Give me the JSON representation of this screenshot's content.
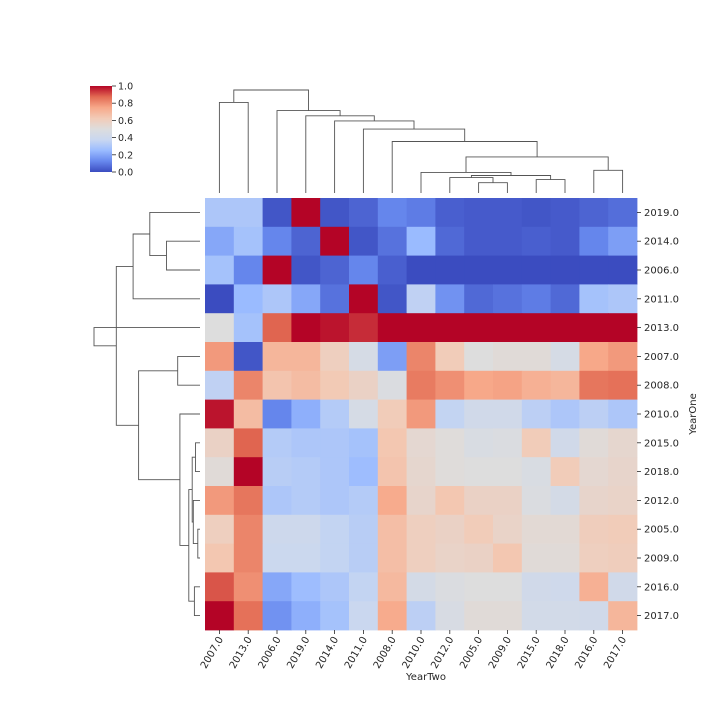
{
  "chart_data": {
    "type": "heatmap",
    "title": "",
    "xlabel": "YearTwo",
    "ylabel": "YearOne",
    "colormap": "coolwarm",
    "colormap_stops": [
      "#3b4cc0",
      "#6788ee",
      "#9abbff",
      "#c9d7f0",
      "#dddddd",
      "#f2cbb7",
      "#f7a889",
      "#e26952",
      "#b40426"
    ],
    "clim": [
      0,
      1
    ],
    "colorbar_ticks": [
      "0.0",
      "0.2",
      "0.4",
      "0.6",
      "0.8",
      "1.0"
    ],
    "colorbar_values": [
      0.0,
      0.2,
      0.4,
      0.6,
      0.8,
      1.0
    ],
    "columns": [
      "2007.0",
      "2013.0",
      "2006.0",
      "2019.0",
      "2014.0",
      "2011.0",
      "2008.0",
      "2010.0",
      "2012.0",
      "2005.0",
      "2009.0",
      "2015.0",
      "2018.0",
      "2016.0",
      "2017.0"
    ],
    "rows": [
      "2019.0",
      "2014.0",
      "2006.0",
      "2011.0",
      "2013.0",
      "2007.0",
      "2008.0",
      "2010.0",
      "2015.0",
      "2018.0",
      "2012.0",
      "2005.0",
      "2009.0",
      "2016.0",
      "2017.0"
    ],
    "values": [
      [
        0.3,
        0.3,
        0.02,
        1.0,
        0.02,
        0.05,
        0.12,
        0.1,
        0.04,
        0.03,
        0.03,
        0.02,
        0.03,
        0.05,
        0.07
      ],
      [
        0.2,
        0.28,
        0.12,
        0.05,
        1.0,
        0.02,
        0.08,
        0.25,
        0.06,
        0.03,
        0.03,
        0.04,
        0.03,
        0.12,
        0.18
      ],
      [
        0.28,
        0.12,
        1.0,
        0.02,
        0.05,
        0.12,
        0.04,
        0.0,
        0.0,
        0.0,
        0.0,
        0.0,
        0.0,
        0.0,
        0.0
      ],
      [
        0.0,
        0.25,
        0.3,
        0.2,
        0.08,
        1.0,
        0.02,
        0.35,
        0.15,
        0.06,
        0.08,
        0.1,
        0.06,
        0.28,
        0.3
      ],
      [
        0.5,
        0.28,
        0.88,
        1.0,
        0.98,
        0.95,
        1.0,
        1.0,
        1.0,
        1.0,
        1.0,
        1.0,
        1.0,
        1.0,
        1.0
      ],
      [
        0.78,
        0.02,
        0.7,
        0.7,
        0.6,
        0.45,
        0.18,
        0.82,
        0.62,
        0.5,
        0.52,
        0.52,
        0.45,
        0.75,
        0.78
      ],
      [
        0.35,
        0.82,
        0.65,
        0.68,
        0.63,
        0.58,
        0.48,
        0.84,
        0.8,
        0.75,
        0.76,
        0.72,
        0.7,
        0.85,
        0.86
      ],
      [
        0.98,
        0.68,
        0.12,
        0.22,
        0.32,
        0.45,
        0.62,
        0.78,
        0.36,
        0.42,
        0.42,
        0.34,
        0.3,
        0.34,
        0.3
      ],
      [
        0.58,
        0.88,
        0.32,
        0.3,
        0.3,
        0.28,
        0.64,
        0.54,
        0.51,
        0.47,
        0.48,
        0.62,
        0.42,
        0.52,
        0.55
      ],
      [
        0.52,
        1.0,
        0.33,
        0.32,
        0.3,
        0.26,
        0.65,
        0.55,
        0.51,
        0.5,
        0.5,
        0.47,
        0.62,
        0.54,
        0.56
      ],
      [
        0.78,
        0.85,
        0.3,
        0.32,
        0.3,
        0.32,
        0.74,
        0.56,
        0.64,
        0.58,
        0.58,
        0.48,
        0.44,
        0.56,
        0.57
      ],
      [
        0.6,
        0.82,
        0.4,
        0.4,
        0.36,
        0.33,
        0.67,
        0.6,
        0.58,
        0.62,
        0.57,
        0.53,
        0.53,
        0.61,
        0.62
      ],
      [
        0.64,
        0.82,
        0.39,
        0.39,
        0.36,
        0.33,
        0.67,
        0.6,
        0.57,
        0.58,
        0.64,
        0.52,
        0.52,
        0.6,
        0.61
      ],
      [
        0.9,
        0.8,
        0.2,
        0.26,
        0.3,
        0.36,
        0.69,
        0.44,
        0.48,
        0.5,
        0.5,
        0.42,
        0.41,
        0.72,
        0.42
      ],
      [
        1.0,
        0.86,
        0.15,
        0.22,
        0.28,
        0.38,
        0.74,
        0.34,
        0.46,
        0.52,
        0.52,
        0.43,
        0.43,
        0.42,
        0.7
      ]
    ],
    "row_dendrogram": {
      "leaves": [
        0,
        1,
        2,
        3,
        4,
        5,
        6,
        7,
        8,
        9,
        10,
        11,
        12,
        13,
        14
      ],
      "merges": [
        [
          11,
          12,
          0.02
        ],
        [
          8,
          9,
          0.04
        ],
        [
          13,
          14,
          0.05
        ],
        [
          10,
          15,
          0.06
        ],
        [
          16,
          18,
          0.07
        ],
        [
          17,
          19,
          0.1
        ],
        [
          7,
          20,
          0.18
        ],
        [
          5,
          6,
          0.2
        ],
        [
          1,
          2,
          0.3
        ],
        [
          0,
          23,
          0.45
        ],
        [
          22,
          21,
          0.55
        ],
        [
          3,
          24,
          0.6
        ],
        [
          25,
          26,
          0.75
        ],
        [
          4,
          27,
          0.95
        ]
      ]
    },
    "col_dendrogram": {
      "leaves": [
        0,
        1,
        2,
        3,
        4,
        5,
        6,
        7,
        8,
        9,
        10,
        11,
        12,
        13,
        14
      ],
      "merges": [
        [
          9,
          10,
          0.1
        ],
        [
          8,
          15,
          0.15
        ],
        [
          11,
          12,
          0.13
        ],
        [
          17,
          16,
          0.17
        ],
        [
          7,
          18,
          0.2
        ],
        [
          13,
          14,
          0.22
        ],
        [
          20,
          19,
          0.35
        ],
        [
          6,
          21,
          0.5
        ],
        [
          5,
          22,
          0.62
        ],
        [
          4,
          23,
          0.7
        ],
        [
          3,
          24,
          0.75
        ],
        [
          2,
          25,
          0.8
        ],
        [
          0,
          1,
          0.88
        ],
        [
          27,
          26,
          1.0
        ]
      ]
    }
  }
}
